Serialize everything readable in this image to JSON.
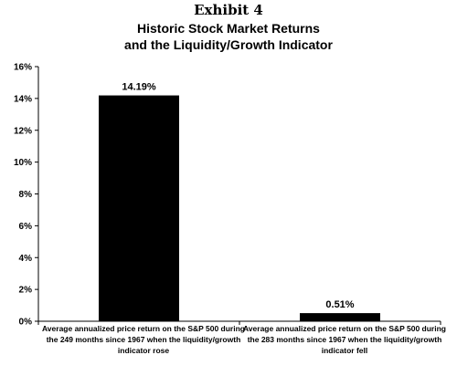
{
  "header": {
    "exhibit": "Exhibit 4"
  },
  "chart_data": {
    "type": "bar",
    "title": "Historic Stock Market Returns and the Liquidity/Growth Indicator",
    "title_lines": [
      "Historic Stock Market Returns",
      "and the Liquidity/Growth Indicator"
    ],
    "categories": [
      "Average annualized price return on the S&P 500 during the 249 months since 1967 when the liquidity/growth indicator rose",
      "Average annualized price return on the S&P 500 during the 283 months since 1967 when the liquidity/growth indicator fell"
    ],
    "values": [
      14.19,
      0.51
    ],
    "data_labels": [
      "14.19%",
      "0.51%"
    ],
    "ylim": [
      0,
      16
    ],
    "yticks": [
      0,
      2,
      4,
      6,
      8,
      10,
      12,
      14,
      16
    ],
    "ytick_labels": [
      "0%",
      "2%",
      "4%",
      "6%",
      "8%",
      "10%",
      "12%",
      "14%",
      "16%"
    ],
    "bar_color": "#000000",
    "grid": false
  }
}
